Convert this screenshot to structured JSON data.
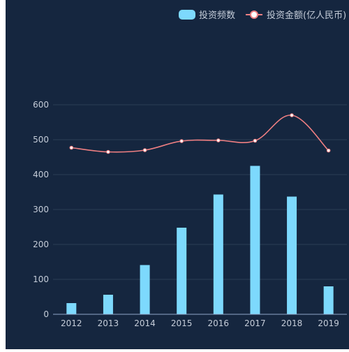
{
  "colors": {
    "background": "#15263f",
    "page_edge": "#ffffff",
    "bar": "#7dd9fd",
    "line": "#ef7f82",
    "point_fill": "#ffffff",
    "grid": "#2c3d55",
    "axis": "#8ea6c8",
    "text": "#c5cdd9"
  },
  "chart_data": {
    "type": "bar",
    "categories": [
      "2012",
      "2013",
      "2014",
      "2015",
      "2016",
      "2017",
      "2018",
      "2019"
    ],
    "series": [
      {
        "name": "投资频数",
        "type": "bar",
        "values": [
          32,
          56,
          141,
          248,
          343,
          425,
          337,
          80
        ]
      },
      {
        "name": "投资金额(亿人民币)",
        "type": "line",
        "smooth": true,
        "values": [
          477,
          465,
          470,
          496,
          498,
          497,
          570,
          469
        ]
      }
    ],
    "ylim": [
      0,
      600
    ],
    "yticks": [
      0,
      100,
      200,
      300,
      400,
      500,
      600
    ],
    "grid": true,
    "legend": "top-right"
  }
}
